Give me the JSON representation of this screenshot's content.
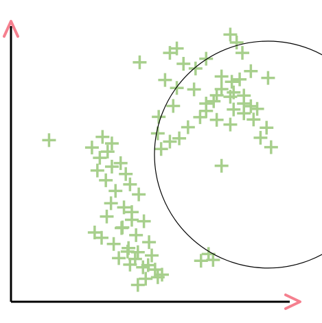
{
  "colors": {
    "background": "#ffffff",
    "axis": "#000000",
    "arrow": "#f5808f",
    "marker": "#a7cf8c",
    "circle": "#000000"
  },
  "chart_data": {
    "type": "scatter",
    "title": "",
    "xlabel": "",
    "ylabel": "",
    "grid": false,
    "legend": "none",
    "xlim": [
      0,
      100
    ],
    "ylim": [
      0,
      100
    ],
    "marker": "plus",
    "series": [
      {
        "x": [
          86.1,
          74.7,
          72.6,
          54.9,
          42.6,
          76.6,
          64.6,
          61.1,
          69.7,
          79.4,
          68.1,
          73.1,
          73.7,
          77.1,
          64.6,
          73.7,
          82.6,
          79.4,
          68.1,
          77.1,
          80.3,
          81.5,
          72.6,
          62.6,
          64.6,
          67.1,
          77.1,
          60.6,
          75.7,
          69.7,
          57.1,
          52.6,
          85.1,
          84.6,
          54.9,
          51.0,
          72.6,
          53.7,
          48.6,
          52.6,
          49.7,
          55.7,
          58.6,
          48.9,
          12.6,
          69.7,
          66.9,
          65.4,
          62.9
        ],
        "y": [
          52.4,
          87.9,
          90.6,
          85.9,
          81.2,
          84.4,
          82.4,
          79.1,
          72.1,
          78.2,
          70.0,
          74.6,
          71.0,
          67.2,
          64.7,
          65.2,
          55.6,
          66.3,
          61.7,
          63.9,
          61.8,
          65.4,
          60.1,
          62.6,
          67.2,
          68.0,
          69.9,
          72.0,
          75.4,
          76.4,
          80.7,
          84.4,
          75.9,
          59.0,
          72.5,
          75.2,
          69.5,
          66.4,
          57.1,
          54.3,
          51.8,
          55.4,
          59.2,
          62.7,
          54.8,
          46.1,
          14.2,
          16.2,
          13.9
        ]
      },
      {
        "x": [
          30.3,
          33.4,
          26.8,
          32.0,
          29.4,
          33.4,
          38.0,
          36.3,
          31.4,
          28.6,
          34.6,
          39.4,
          42.3,
          37.4,
          40.0,
          44.0,
          33.1,
          31.7,
          36.9,
          41.4,
          45.7,
          38.9,
          42.0,
          46.6,
          35.7,
          39.4,
          43.7,
          47.7,
          50.0,
          44.6,
          48.6,
          42.0,
          27.7,
          30.0,
          34.0,
          38.6,
          41.1,
          45.4,
          36.6,
          40.0
        ],
        "y": [
          55.9,
          53.7,
          52.3,
          50.9,
          48.8,
          45.8,
          43.3,
          47.0,
          41.2,
          44.5,
          37.6,
          39.8,
          36.4,
          32.0,
          30.4,
          27.3,
          33.4,
          28.9,
          25.2,
          22.6,
          20.2,
          18.2,
          16.8,
          15.7,
          14.8,
          12.6,
          11.7,
          10.9,
          9.2,
          7.8,
          8.3,
          5.7,
          23.5,
          21.7,
          19.6,
          17.0,
          14.5,
          12.4,
          25.0,
          27.8
        ]
      }
    ],
    "annotations": [
      {
        "type": "circle",
        "center": [
          85.1,
          49.9
        ],
        "radius": 37.6
      }
    ]
  }
}
